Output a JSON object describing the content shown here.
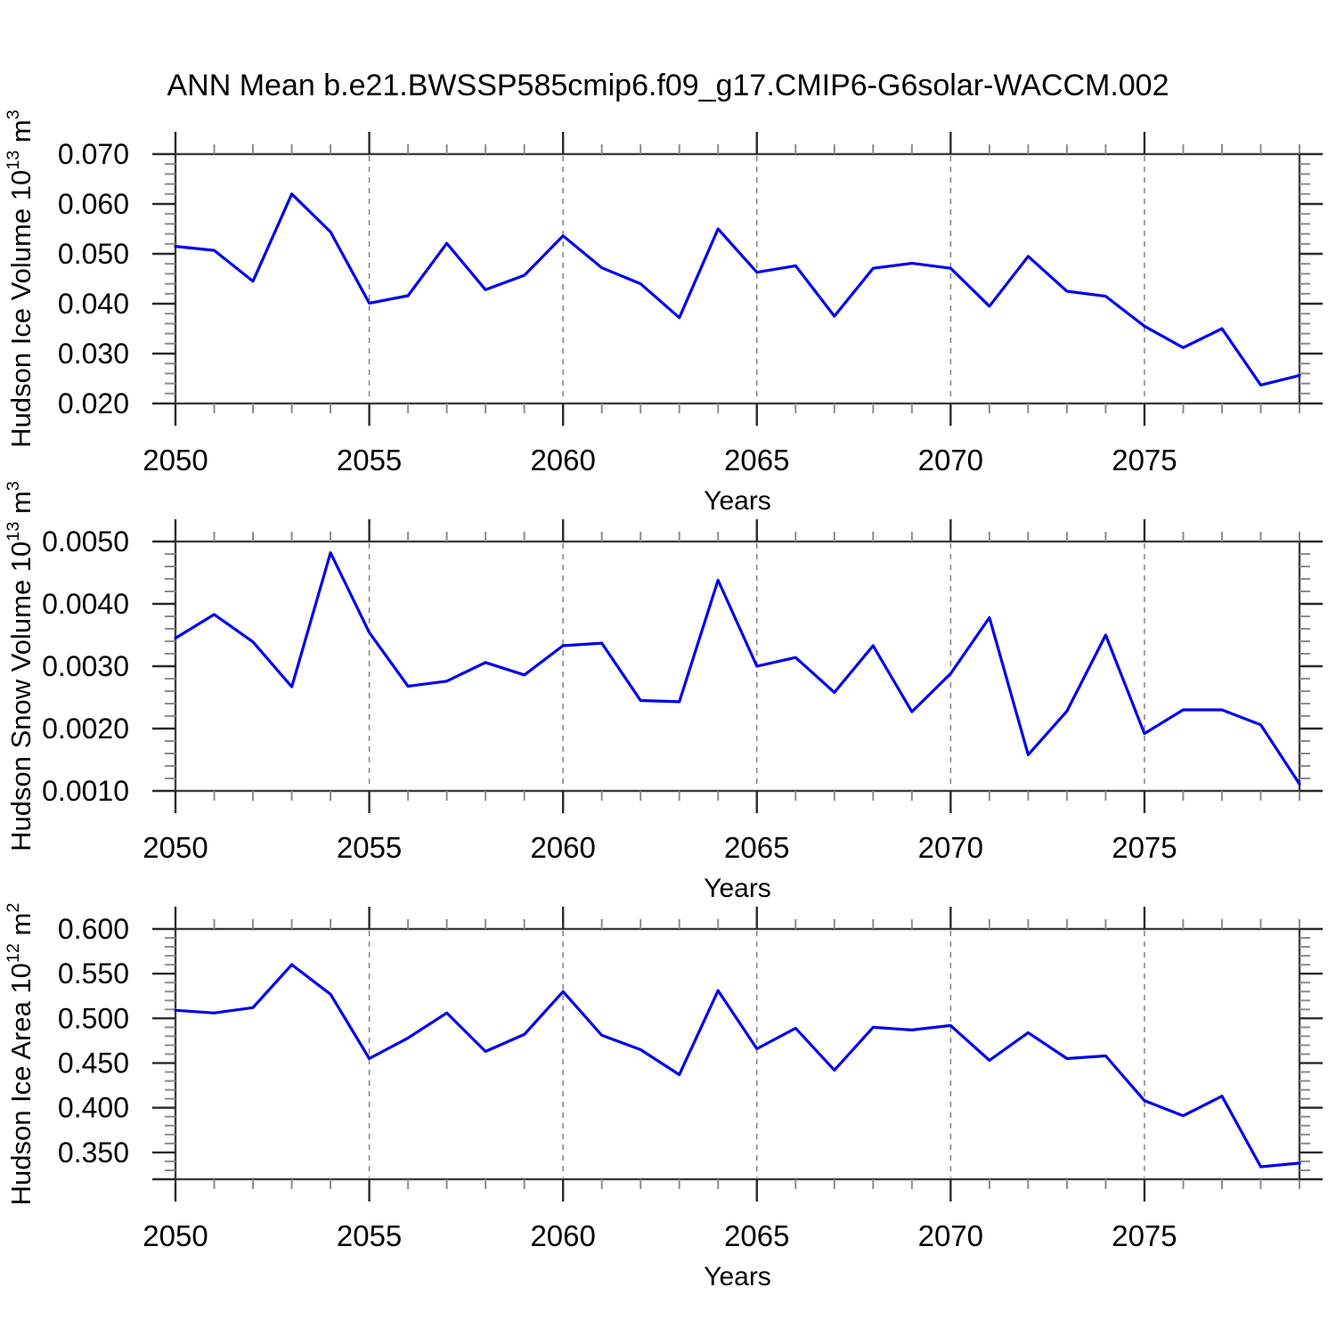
{
  "title": "ANN Mean b.e21.BWSSP585cmip6.f09_g17.CMIP6-G6solar-WACCM.002",
  "colors": {
    "line": "#0000ee",
    "grid": "#8a8a8a",
    "spine": "#3c3c3c",
    "major_tick": "#2a2a2a",
    "minor_tick": "#8c8c8c",
    "background": "#ffffff",
    "text": "#000000"
  },
  "chart_data": [
    {
      "type": "line",
      "ylabel": "Hudson Ice Volume 10^{13} m^{3}",
      "xlabel": "Years",
      "x": [
        2050,
        2051,
        2052,
        2053,
        2054,
        2055,
        2056,
        2057,
        2058,
        2059,
        2060,
        2061,
        2062,
        2063,
        2064,
        2065,
        2066,
        2067,
        2068,
        2069,
        2070,
        2071,
        2072,
        2073,
        2074,
        2075,
        2076,
        2077,
        2078,
        2079
      ],
      "values": [
        0.0515,
        0.0507,
        0.0445,
        0.062,
        0.0544,
        0.0401,
        0.0416,
        0.0521,
        0.0428,
        0.0457,
        0.0536,
        0.0472,
        0.044,
        0.0372,
        0.055,
        0.0463,
        0.0476,
        0.0375,
        0.0471,
        0.0481,
        0.0471,
        0.0395,
        0.0495,
        0.0425,
        0.0415,
        0.0355,
        0.0312,
        0.035,
        0.0237,
        0.0256
      ],
      "ylim": [
        0.02,
        0.07
      ],
      "yticks": [
        0.07,
        0.06,
        0.05,
        0.04,
        0.03,
        0.02
      ],
      "ytick_labels": [
        "0.070",
        "0.060",
        "0.050",
        "0.040",
        "0.030",
        "0.020"
      ],
      "y_minor_step": 0.002,
      "xlim": [
        2050,
        2079
      ],
      "xticks": [
        2050,
        2055,
        2060,
        2065,
        2070,
        2075
      ],
      "xtick_labels": [
        "2050",
        "2055",
        "2060",
        "2065",
        "2070",
        "2075"
      ],
      "grid_x": [
        2055,
        2060,
        2065,
        2070,
        2075
      ],
      "grid": "vertical-dashed"
    },
    {
      "type": "line",
      "ylabel": "Hudson Snow Volume 10^{13} m^{3}",
      "xlabel": "Years",
      "x": [
        2050,
        2051,
        2052,
        2053,
        2054,
        2055,
        2056,
        2057,
        2058,
        2059,
        2060,
        2061,
        2062,
        2063,
        2064,
        2065,
        2066,
        2067,
        2068,
        2069,
        2070,
        2071,
        2072,
        2073,
        2074,
        2075,
        2076,
        2077,
        2078,
        2079
      ],
      "values": [
        0.00345,
        0.00383,
        0.00339,
        0.00267,
        0.00482,
        0.00354,
        0.00268,
        0.00276,
        0.00306,
        0.00286,
        0.00333,
        0.00337,
        0.00245,
        0.00243,
        0.00438,
        0.003,
        0.00314,
        0.00258,
        0.00333,
        0.00227,
        0.00288,
        0.00378,
        0.00158,
        0.00228,
        0.0035,
        0.00192,
        0.0023,
        0.0023,
        0.00206,
        0.00111
      ],
      "ylim": [
        0.001,
        0.005
      ],
      "yticks": [
        0.005,
        0.004,
        0.003,
        0.002,
        0.001
      ],
      "ytick_labels": [
        "0.0050",
        "0.0040",
        "0.0030",
        "0.0020",
        "0.0010"
      ],
      "y_minor_step": 0.0002,
      "xlim": [
        2050,
        2079
      ],
      "xticks": [
        2050,
        2055,
        2060,
        2065,
        2070,
        2075
      ],
      "xtick_labels": [
        "2050",
        "2055",
        "2060",
        "2065",
        "2070",
        "2075"
      ],
      "grid_x": [
        2055,
        2060,
        2065,
        2070,
        2075
      ],
      "grid": "vertical-dashed"
    },
    {
      "type": "line",
      "ylabel": "Hudson Ice Area 10^{12} m^{2}",
      "xlabel": "Years",
      "x": [
        2050,
        2051,
        2052,
        2053,
        2054,
        2055,
        2056,
        2057,
        2058,
        2059,
        2060,
        2061,
        2062,
        2063,
        2064,
        2065,
        2066,
        2067,
        2068,
        2069,
        2070,
        2071,
        2072,
        2073,
        2074,
        2075,
        2076,
        2077,
        2078,
        2079
      ],
      "values": [
        0.509,
        0.506,
        0.512,
        0.56,
        0.527,
        0.455,
        0.478,
        0.506,
        0.463,
        0.482,
        0.53,
        0.481,
        0.465,
        0.437,
        0.531,
        0.466,
        0.489,
        0.442,
        0.49,
        0.487,
        0.492,
        0.453,
        0.484,
        0.455,
        0.458,
        0.408,
        0.391,
        0.413,
        0.334,
        0.338
      ],
      "ylim": [
        0.32,
        0.6
      ],
      "yticks": [
        0.6,
        0.55,
        0.5,
        0.45,
        0.4,
        0.35
      ],
      "ytick_labels": [
        "0.600",
        "0.550",
        "0.500",
        "0.450",
        "0.400",
        "0.350"
      ],
      "y_minor_step": 0.01,
      "xlim": [
        2050,
        2079
      ],
      "xticks": [
        2050,
        2055,
        2060,
        2065,
        2070,
        2075
      ],
      "xtick_labels": [
        "2050",
        "2055",
        "2060",
        "2065",
        "2070",
        "2075"
      ],
      "grid_x": [
        2055,
        2060,
        2065,
        2070,
        2075
      ],
      "grid": "vertical-dashed"
    }
  ]
}
